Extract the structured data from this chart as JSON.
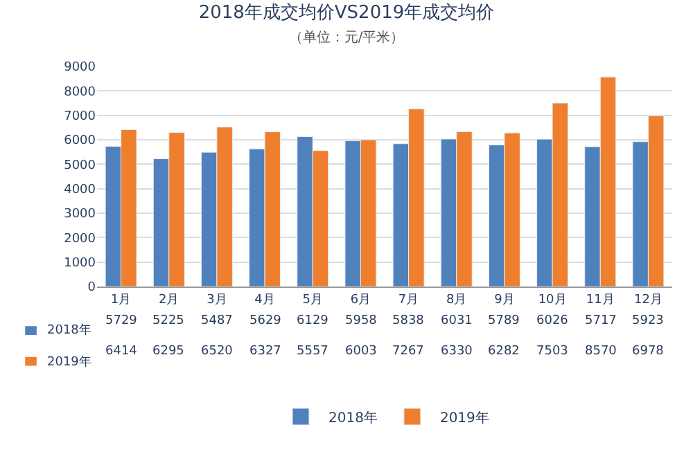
{
  "chart_data": {
    "type": "bar",
    "title": "2018年成交均价VS2019年成交均价",
    "subtitle": "（单位：元/平米）",
    "categories": [
      "1月",
      "2月",
      "3月",
      "4月",
      "5月",
      "6月",
      "7月",
      "8月",
      "9月",
      "10月",
      "11月",
      "12月"
    ],
    "series": [
      {
        "name": "2018年",
        "color": "#4f81bd",
        "values": [
          5729,
          5225,
          5487,
          5629,
          6129,
          5958,
          5838,
          6031,
          5789,
          6026,
          5717,
          5923
        ]
      },
      {
        "name": "2019年",
        "color": "#f07f2d",
        "values": [
          6414,
          6295,
          6520,
          6327,
          5557,
          6003,
          7267,
          6330,
          6282,
          7503,
          8570,
          6978
        ]
      }
    ],
    "ylim": [
      0,
      9000
    ],
    "yticks": [
      0,
      1000,
      2000,
      3000,
      4000,
      5000,
      6000,
      7000,
      8000,
      9000
    ],
    "grid": "y",
    "legend": "bottom",
    "data_labels": true
  }
}
